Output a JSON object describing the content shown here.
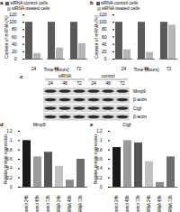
{
  "chart_data": [
    {
      "panel": "a",
      "type": "bar",
      "x_label": "Time (hours)",
      "y_label": "Content of mRNA (%)",
      "categories": [
        "24",
        "48",
        "72"
      ],
      "series": [
        {
          "name": "siRNA control cells",
          "color": "#5a5a5a",
          "values": [
            100,
            100,
            100
          ]
        },
        {
          "name": "siRNA treated cells",
          "color": "#b5b5b5",
          "values": [
            15,
            30,
            42
          ]
        }
      ],
      "ylim": [
        0,
        120
      ],
      "yticks": [
        0,
        20,
        40,
        60,
        80,
        100,
        120
      ],
      "legend": "top"
    },
    {
      "panel": "b",
      "type": "bar",
      "x_label": "Time (hours)",
      "y_label": "Content of mRNA (%)",
      "categories": [
        "24",
        "48",
        "72"
      ],
      "series": [
        {
          "name": "siRNA control cells",
          "color": "#5a5a5a",
          "values": [
            100,
            100,
            100
          ]
        },
        {
          "name": "siRNA treated cells",
          "color": "#b5b5b5",
          "values": [
            25,
            18,
            92
          ]
        }
      ],
      "ylim": [
        0,
        120
      ],
      "yticks": [
        0,
        20,
        40,
        60,
        80,
        100,
        120
      ],
      "legend": "top"
    },
    {
      "panel": "d",
      "type": "bar",
      "title": "Mmp9",
      "y_label": "Relative protein expression",
      "categories": [
        "control 24h",
        "control 48h",
        "control 72h",
        "siRNA 24h",
        "siRNA 48h",
        "siRNA 72h"
      ],
      "values": [
        1.0,
        0.65,
        0.75,
        0.45,
        0.15,
        0.6
      ],
      "colors": [
        "#1a1a1a",
        "#9a9a9a",
        "#555555",
        "#c0c0c0",
        "#8a8a8a",
        "#6e6e6e"
      ],
      "ylim": [
        0,
        1.2
      ],
      "yticks": [
        0,
        0.2,
        0.4,
        0.6,
        0.8,
        1,
        1.2
      ]
    },
    {
      "panel": "e",
      "type": "bar",
      "title": "Ctgf",
      "y_label": "Relative protein expression",
      "categories": [
        "control 24h",
        "control 48h",
        "control 72h",
        "siRNA 24h",
        "siRNA 48h",
        "siRNA 72h"
      ],
      "values": [
        0.85,
        1.0,
        0.95,
        0.55,
        0.1,
        0.65
      ],
      "colors": [
        "#1a1a1a",
        "#9a9a9a",
        "#555555",
        "#c0c0c0",
        "#8a8a8a",
        "#6e6e6e"
      ],
      "ylim": [
        0,
        1.2
      ],
      "yticks": [
        0,
        0.2,
        0.4,
        0.6,
        0.8,
        1,
        1.2
      ]
    }
  ],
  "blot": {
    "panel": "c",
    "groups": [
      {
        "name": "siRNA",
        "lanes": [
          "24",
          "48",
          "72"
        ]
      },
      {
        "name": "control",
        "lanes": [
          "24",
          "48",
          "72"
        ]
      }
    ],
    "rows": [
      "Mmp9",
      "β-actin",
      "Ctgf",
      "β-actin"
    ]
  }
}
